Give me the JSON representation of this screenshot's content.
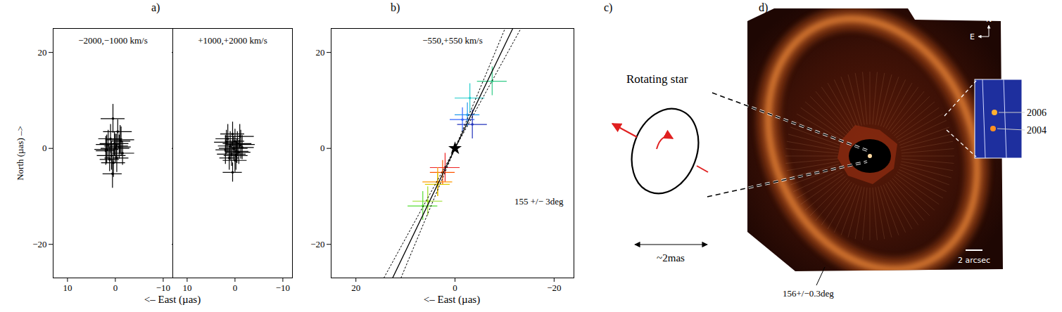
{
  "panel_labels": [
    "a)",
    "b)",
    "c)",
    "d)"
  ],
  "chart_data": [
    {
      "type": "scatter",
      "title": "−2000,−1000 km/s",
      "x_label": "<– East (µas)",
      "y_label": "North (µas) –>",
      "xlim": [
        13,
        -12
      ],
      "ylim": [
        -27,
        25
      ],
      "xticks": [
        10,
        0,
        -10
      ],
      "yticks": [
        20,
        0,
        -20
      ],
      "series": [
        {
          "type": "scatter",
          "marker": "circle",
          "color": "#000000",
          "x": [
            0.5,
            -0.5,
            1.0,
            -1.2,
            0.2,
            1.5,
            -0.8,
            0.0,
            2.0,
            -1.5,
            0.8,
            -0.3,
            1.2,
            0.4,
            -1.0,
            0.6,
            -0.2,
            1.8
          ],
          "y": [
            6.2,
            3.5,
            2.0,
            1.5,
            1.0,
            0.8,
            0.3,
            0.0,
            -0.5,
            -1.0,
            -1.5,
            -2.0,
            -2.3,
            -3.0,
            1.8,
            -5.3,
            0.5,
            -0.2
          ],
          "x_err": [
            2.5,
            3.0,
            2.5,
            2.0,
            3.0,
            2.5,
            2.5,
            3.0,
            2.0,
            2.5,
            3.0,
            2.5,
            2.0,
            2.5,
            3.0,
            2.0,
            2.5,
            2.5
          ],
          "y_err": [
            3.0,
            2.5,
            3.0,
            3.0,
            2.5,
            3.0,
            2.5,
            3.0,
            3.0,
            2.5,
            3.0,
            3.0,
            2.5,
            3.0,
            3.0,
            3.0,
            2.5,
            3.0
          ]
        }
      ]
    },
    {
      "type": "scatter",
      "title": "+1000,+2000 km/s",
      "tick_labels": "x",
      "xlim": [
        13,
        -12
      ],
      "ylim": [
        -27,
        25
      ],
      "xticks": [
        10,
        0,
        -10
      ],
      "yticks": [
        20,
        0,
        -20
      ],
      "series": [
        {
          "type": "scatter",
          "marker": "circle",
          "color": "#000000",
          "x": [
            0.5,
            -1.0,
            1.5,
            0.0,
            -0.5,
            1.0,
            -1.5,
            0.3,
            2.0,
            -0.8,
            0.7,
            -0.2,
            1.2,
            0.0,
            -1.2,
            0.5,
            1.8,
            -0.4
          ],
          "y": [
            3.0,
            2.5,
            2.0,
            1.5,
            1.0,
            0.5,
            0.2,
            0.0,
            -0.3,
            -0.8,
            -1.2,
            -1.5,
            -2.0,
            -2.5,
            0.8,
            -5.0,
            1.3,
            -0.6
          ],
          "x_err": [
            2.5,
            3.0,
            2.5,
            2.0,
            3.0,
            2.5,
            2.5,
            3.0,
            2.0,
            2.5,
            3.0,
            2.5,
            2.0,
            2.5,
            3.0,
            2.0,
            2.5,
            2.5
          ],
          "y_err": [
            2.5,
            2.5,
            3.0,
            2.5,
            2.5,
            3.0,
            2.5,
            2.5,
            3.0,
            2.5,
            2.5,
            3.0,
            2.5,
            2.5,
            3.0,
            2.0,
            2.5,
            2.5
          ]
        }
      ]
    },
    {
      "type": "scatter",
      "title": "−550,+550 km/s",
      "x_label": "<– East (µas)",
      "xlim": [
        25,
        -24
      ],
      "ylim": [
        -27,
        25
      ],
      "xticks": [
        20,
        0,
        -20
      ],
      "yticks": [
        20,
        0,
        -20
      ],
      "series": [
        {
          "type": "scatter",
          "marker": "circle",
          "x": [
            -7.5,
            -3.0,
            -2.5,
            -1.5,
            -3.5,
            2.0,
            2.5,
            3.5,
            3.5,
            5.5,
            6.5
          ],
          "y": [
            14.0,
            10.5,
            7.0,
            6.0,
            5.0,
            -4.0,
            -5.0,
            -7.0,
            -7.5,
            -11.0,
            -12.0
          ],
          "x_err": [
            3.0,
            3.0,
            2.5,
            2.5,
            3.0,
            3.0,
            2.5,
            3.0,
            2.5,
            3.0,
            3.0
          ],
          "y_err": [
            3.0,
            3.0,
            2.5,
            2.5,
            3.0,
            3.0,
            2.5,
            3.0,
            2.5,
            3.0,
            3.0
          ],
          "colors": [
            "#33cc88",
            "#22cccc",
            "#2299ee",
            "#3366ff",
            "#2233bb",
            "#ee2222",
            "#ff5500",
            "#ff9900",
            "#ddcc00",
            "#99dd22",
            "#55dd33"
          ]
        },
        {
          "type": "scatter",
          "marker": "star",
          "color": "#000000",
          "x": [
            0
          ],
          "y": [
            0
          ]
        },
        {
          "type": "line",
          "position_angle": 155,
          "position_angle_err": 3,
          "label": "155 +/− 3deg",
          "color": "#000000",
          "line_style": "solid"
        }
      ]
    }
  ],
  "diagram": {
    "label": "Rotating star",
    "scale_label": "~2mas"
  },
  "image": {
    "compass": {
      "north": "N",
      "east": "E"
    },
    "inset_labels": [
      "2006",
      "2004"
    ],
    "scale_label": "2 arcsec",
    "annotation": "156+/−0.3deg"
  }
}
